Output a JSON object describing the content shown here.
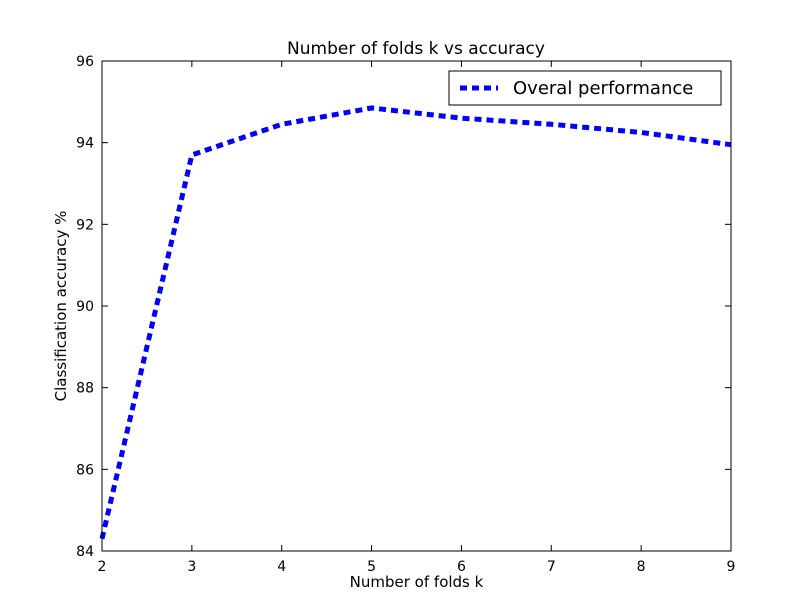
{
  "chart_data": {
    "type": "line",
    "title": "Number of folds k vs accuracy",
    "xlabel": "Number of folds k",
    "ylabel": "Classification accuracy %",
    "xlim": [
      2,
      9
    ],
    "ylim": [
      84,
      96
    ],
    "xticks": [
      2,
      3,
      4,
      5,
      6,
      7,
      8,
      9
    ],
    "yticks": [
      84,
      86,
      88,
      90,
      92,
      94,
      96
    ],
    "grid": false,
    "legend_position": "top-right",
    "series": [
      {
        "name": "Overal performance",
        "color": "#0000ff",
        "line_style": "dashed",
        "x": [
          2,
          3,
          4,
          5,
          6,
          7,
          8,
          9
        ],
        "y": [
          84.3,
          93.7,
          94.45,
          94.85,
          94.6,
          94.45,
          94.25,
          93.95
        ]
      }
    ]
  }
}
